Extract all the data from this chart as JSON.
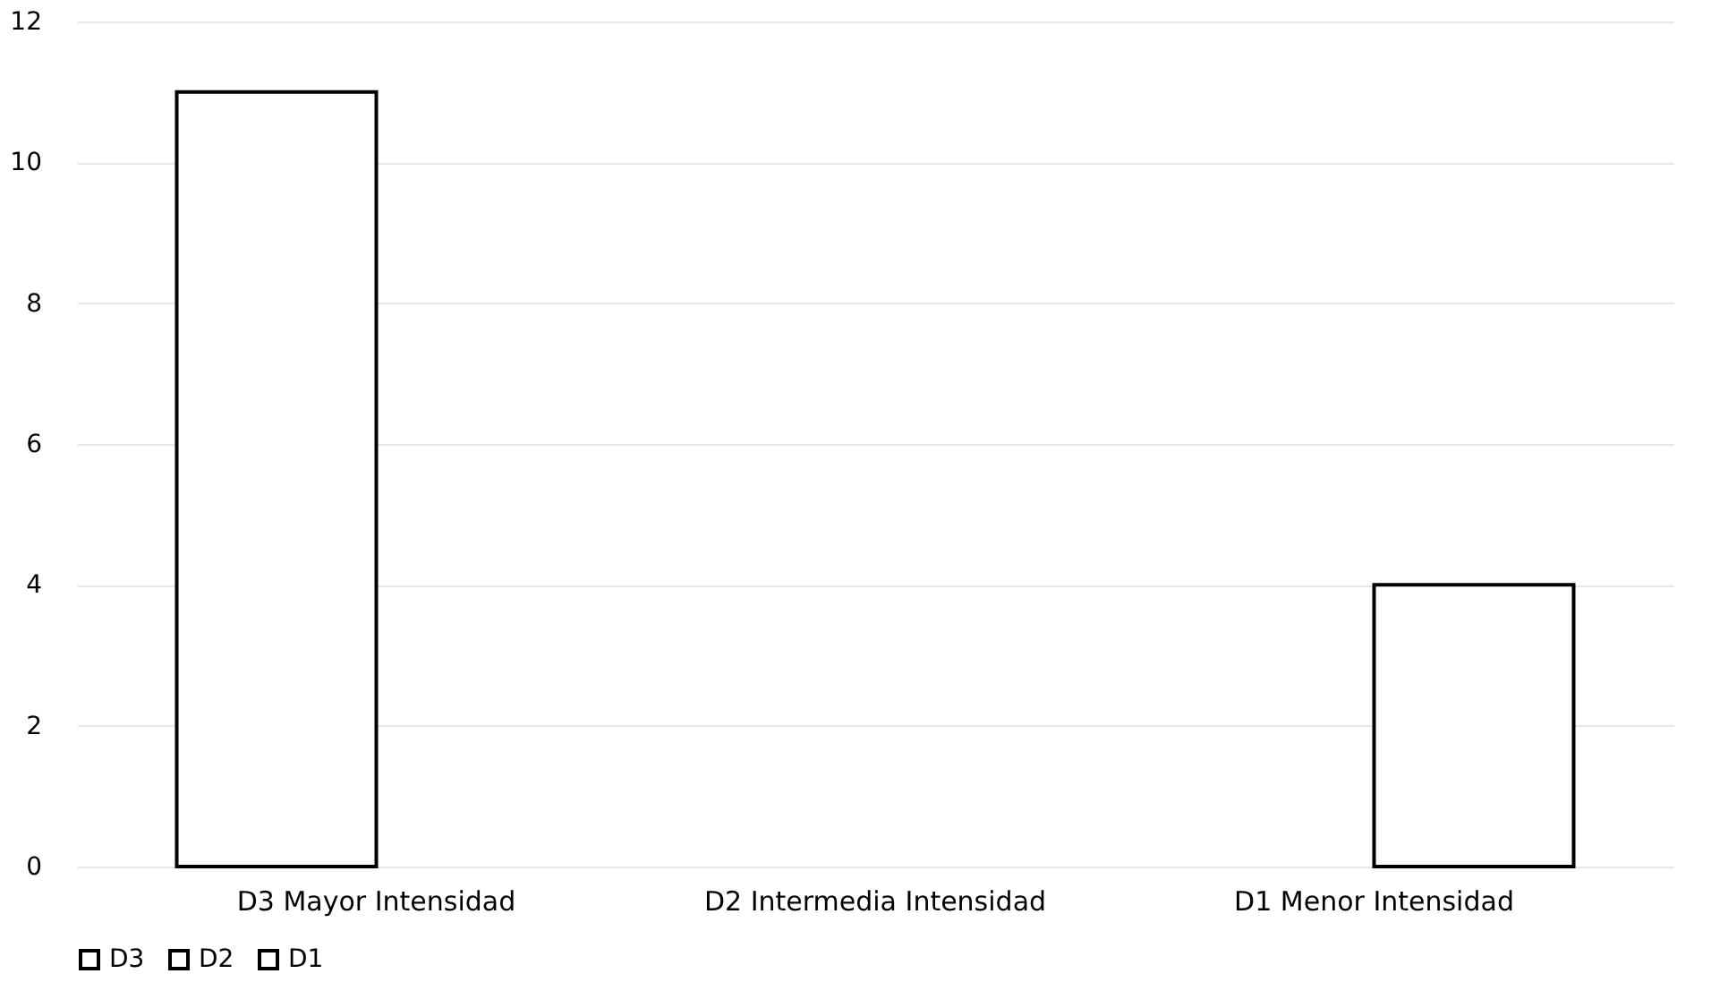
{
  "chart_data": {
    "type": "bar",
    "categories": [
      "D3 Mayor Intensidad",
      "D2 Intermedia Intensidad",
      "D1 Menor Intensidad"
    ],
    "series": [
      {
        "name": "D3",
        "color": "#ffffff",
        "values": [
          11,
          null,
          null
        ]
      },
      {
        "name": "D2",
        "color": "#ffffff",
        "values": [
          null,
          null,
          null
        ]
      },
      {
        "name": "D1",
        "color": "#ffffff",
        "values": [
          null,
          null,
          4
        ]
      }
    ],
    "ylim": [
      0,
      12
    ],
    "yticks": [
      0,
      2,
      4,
      6,
      8,
      10,
      12
    ],
    "grid": "y",
    "legend": "bottom"
  }
}
